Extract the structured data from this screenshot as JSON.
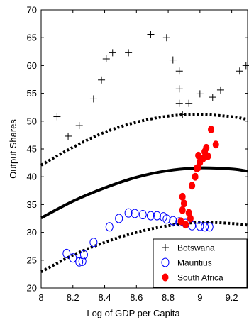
{
  "chart_data": {
    "type": "scatter",
    "xlabel": "Log of GDP per Capita",
    "ylabel": "Output Shares",
    "xlim": [
      8,
      9.3
    ],
    "ylim": [
      20,
      70
    ],
    "xticks": [
      "8",
      "8.2",
      "8.4",
      "8.6",
      "8.8",
      "9",
      "9.2"
    ],
    "yticks": [
      "20",
      "25",
      "30",
      "35",
      "40",
      "45",
      "50",
      "55",
      "60",
      "65",
      "70"
    ],
    "legend": {
      "placement": "bottom-right"
    },
    "series": [
      {
        "name": "Botswana",
        "marker": "plus",
        "color": "#000000",
        "points": [
          [
            8.1,
            50.8
          ],
          [
            8.17,
            47.3
          ],
          [
            8.24,
            49.2
          ],
          [
            8.33,
            54.0
          ],
          [
            8.38,
            57.4
          ],
          [
            8.41,
            61.2
          ],
          [
            8.45,
            62.3
          ],
          [
            8.55,
            62.3
          ],
          [
            8.69,
            65.6
          ],
          [
            8.79,
            65.0
          ],
          [
            8.83,
            61.0
          ],
          [
            8.87,
            59.0
          ],
          [
            8.87,
            55.8
          ],
          [
            8.87,
            53.2
          ],
          [
            8.89,
            51.2
          ],
          [
            8.93,
            53.2
          ],
          [
            9.0,
            54.9
          ],
          [
            9.08,
            54.3
          ],
          [
            9.13,
            55.6
          ],
          [
            9.25,
            59.0
          ],
          [
            9.29,
            60.0
          ]
        ]
      },
      {
        "name": "Mauritius",
        "marker": "open-circle",
        "color": "#0000ff",
        "points": [
          [
            8.16,
            26.2
          ],
          [
            8.2,
            25.4
          ],
          [
            8.24,
            24.7
          ],
          [
            8.26,
            24.8
          ],
          [
            8.27,
            26.0
          ],
          [
            8.33,
            28.2
          ],
          [
            8.43,
            31.0
          ],
          [
            8.49,
            32.5
          ],
          [
            8.55,
            33.5
          ],
          [
            8.59,
            33.4
          ],
          [
            8.64,
            33.2
          ],
          [
            8.69,
            33.0
          ],
          [
            8.73,
            33.0
          ],
          [
            8.77,
            32.8
          ],
          [
            8.79,
            32.4
          ],
          [
            8.83,
            32.1
          ],
          [
            8.87,
            31.9
          ],
          [
            8.91,
            31.6
          ],
          [
            8.95,
            31.2
          ],
          [
            9.0,
            31.1
          ],
          [
            9.03,
            31.0
          ],
          [
            9.06,
            31.0
          ]
        ]
      },
      {
        "name": "South Africa",
        "marker": "filled-circle",
        "color": "#ff0000",
        "points": [
          [
            8.88,
            32.0
          ],
          [
            8.89,
            34.0
          ],
          [
            8.89,
            36.4
          ],
          [
            8.9,
            35.2
          ],
          [
            8.91,
            31.4
          ],
          [
            8.93,
            33.5
          ],
          [
            8.94,
            32.5
          ],
          [
            8.95,
            38.4
          ],
          [
            8.97,
            40.0
          ],
          [
            8.98,
            41.5
          ],
          [
            8.99,
            41.7
          ],
          [
            8.99,
            43.8
          ],
          [
            9.0,
            42.6
          ],
          [
            9.02,
            43.3
          ],
          [
            9.03,
            44.5
          ],
          [
            9.04,
            45.2
          ],
          [
            9.05,
            43.7
          ],
          [
            9.07,
            48.5
          ],
          [
            9.1,
            45.8
          ]
        ]
      }
    ],
    "fitted_curves": [
      {
        "style": "solid",
        "points": [
          [
            8.0,
            32.6
          ],
          [
            8.2,
            35.6
          ],
          [
            8.4,
            38.0
          ],
          [
            8.6,
            39.9
          ],
          [
            8.8,
            41.1
          ],
          [
            9.0,
            41.6
          ],
          [
            9.2,
            41.4
          ],
          [
            9.3,
            41.0
          ]
        ]
      },
      {
        "style": "dotted",
        "points": [
          [
            8.0,
            42.1
          ],
          [
            8.2,
            45.3
          ],
          [
            8.4,
            48.0
          ],
          [
            8.6,
            49.8
          ],
          [
            8.8,
            50.9
          ],
          [
            9.0,
            51.2
          ],
          [
            9.2,
            50.8
          ],
          [
            9.3,
            50.3
          ]
        ]
      },
      {
        "style": "dotted",
        "points": [
          [
            8.0,
            22.9
          ],
          [
            8.2,
            25.9
          ],
          [
            8.4,
            28.2
          ],
          [
            8.6,
            30.0
          ],
          [
            8.8,
            31.2
          ],
          [
            9.0,
            31.8
          ],
          [
            9.2,
            31.6
          ],
          [
            9.3,
            31.3
          ]
        ]
      }
    ]
  }
}
